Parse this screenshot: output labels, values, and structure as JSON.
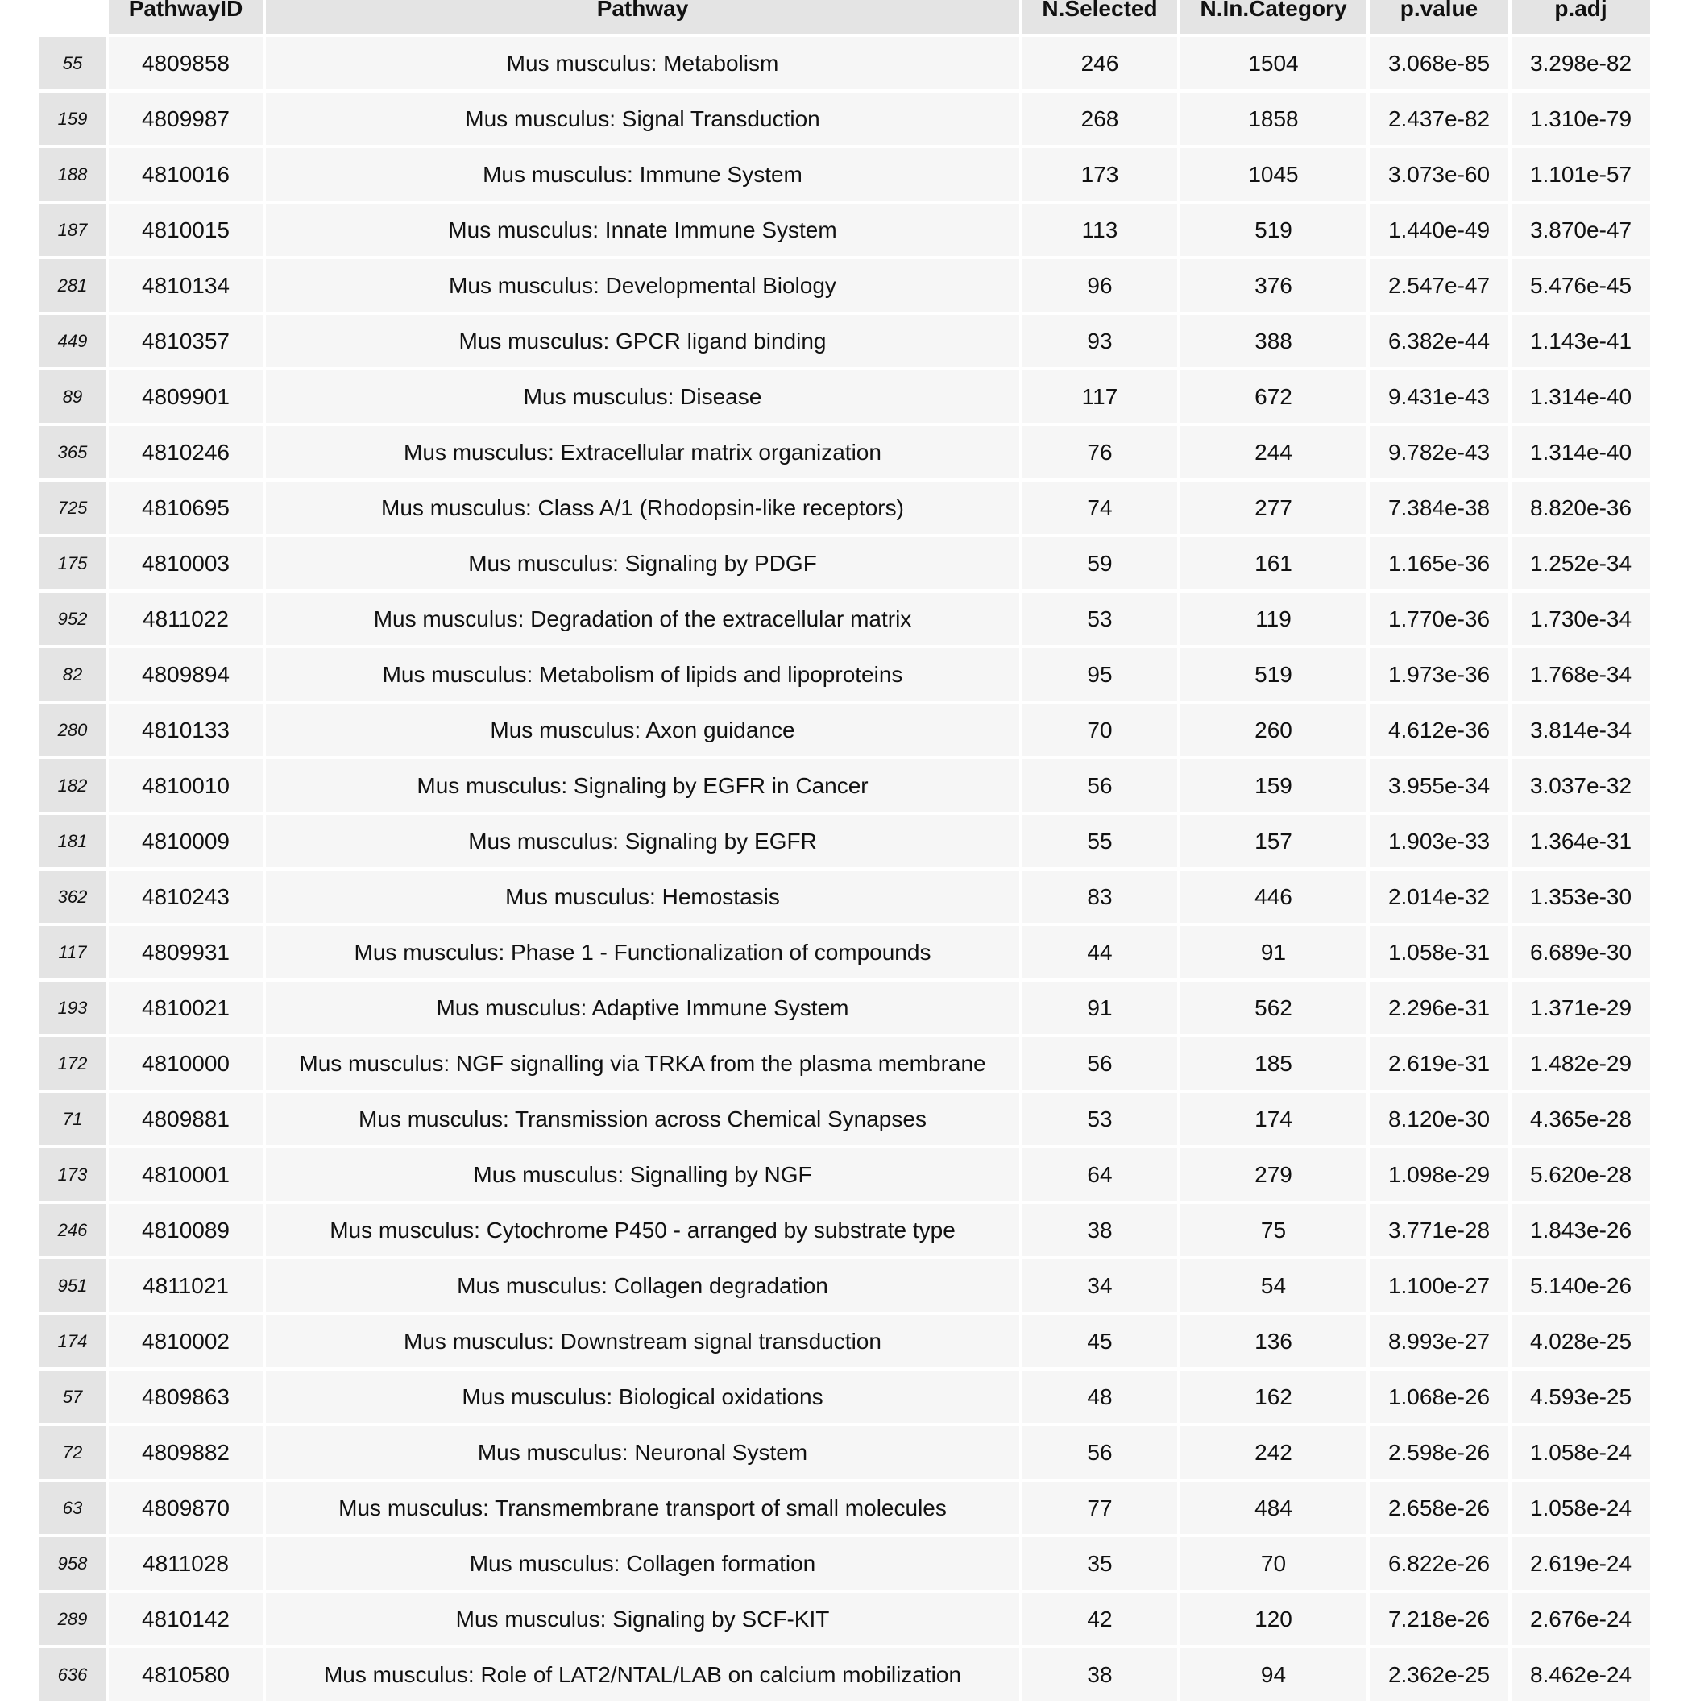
{
  "table": {
    "headers": [
      "",
      "PathwayID",
      "Pathway",
      "N.Selected",
      "N.In.Category",
      "p.value",
      "p.adj"
    ],
    "rows": [
      {
        "idx": "55",
        "id": "4809858",
        "pathway": "Mus musculus: Metabolism",
        "nsel": "246",
        "ncat": "1504",
        "pval": "3.068e-85",
        "padj": "3.298e-82"
      },
      {
        "idx": "159",
        "id": "4809987",
        "pathway": "Mus musculus: Signal Transduction",
        "nsel": "268",
        "ncat": "1858",
        "pval": "2.437e-82",
        "padj": "1.310e-79"
      },
      {
        "idx": "188",
        "id": "4810016",
        "pathway": "Mus musculus: Immune System",
        "nsel": "173",
        "ncat": "1045",
        "pval": "3.073e-60",
        "padj": "1.101e-57"
      },
      {
        "idx": "187",
        "id": "4810015",
        "pathway": "Mus musculus: Innate Immune System",
        "nsel": "113",
        "ncat": "519",
        "pval": "1.440e-49",
        "padj": "3.870e-47"
      },
      {
        "idx": "281",
        "id": "4810134",
        "pathway": "Mus musculus: Developmental Biology",
        "nsel": "96",
        "ncat": "376",
        "pval": "2.547e-47",
        "padj": "5.476e-45"
      },
      {
        "idx": "449",
        "id": "4810357",
        "pathway": "Mus musculus: GPCR ligand binding",
        "nsel": "93",
        "ncat": "388",
        "pval": "6.382e-44",
        "padj": "1.143e-41"
      },
      {
        "idx": "89",
        "id": "4809901",
        "pathway": "Mus musculus: Disease",
        "nsel": "117",
        "ncat": "672",
        "pval": "9.431e-43",
        "padj": "1.314e-40"
      },
      {
        "idx": "365",
        "id": "4810246",
        "pathway": "Mus musculus: Extracellular matrix organization",
        "nsel": "76",
        "ncat": "244",
        "pval": "9.782e-43",
        "padj": "1.314e-40"
      },
      {
        "idx": "725",
        "id": "4810695",
        "pathway": "Mus musculus: Class A/1 (Rhodopsin-like receptors)",
        "nsel": "74",
        "ncat": "277",
        "pval": "7.384e-38",
        "padj": "8.820e-36"
      },
      {
        "idx": "175",
        "id": "4810003",
        "pathway": "Mus musculus: Signaling by PDGF",
        "nsel": "59",
        "ncat": "161",
        "pval": "1.165e-36",
        "padj": "1.252e-34"
      },
      {
        "idx": "952",
        "id": "4811022",
        "pathway": "Mus musculus: Degradation of the extracellular matrix",
        "nsel": "53",
        "ncat": "119",
        "pval": "1.770e-36",
        "padj": "1.730e-34"
      },
      {
        "idx": "82",
        "id": "4809894",
        "pathway": "Mus musculus: Metabolism of lipids and lipoproteins",
        "nsel": "95",
        "ncat": "519",
        "pval": "1.973e-36",
        "padj": "1.768e-34"
      },
      {
        "idx": "280",
        "id": "4810133",
        "pathway": "Mus musculus: Axon guidance",
        "nsel": "70",
        "ncat": "260",
        "pval": "4.612e-36",
        "padj": "3.814e-34"
      },
      {
        "idx": "182",
        "id": "4810010",
        "pathway": "Mus musculus: Signaling by EGFR in Cancer",
        "nsel": "56",
        "ncat": "159",
        "pval": "3.955e-34",
        "padj": "3.037e-32"
      },
      {
        "idx": "181",
        "id": "4810009",
        "pathway": "Mus musculus: Signaling by EGFR",
        "nsel": "55",
        "ncat": "157",
        "pval": "1.903e-33",
        "padj": "1.364e-31"
      },
      {
        "idx": "362",
        "id": "4810243",
        "pathway": "Mus musculus: Hemostasis",
        "nsel": "83",
        "ncat": "446",
        "pval": "2.014e-32",
        "padj": "1.353e-30"
      },
      {
        "idx": "117",
        "id": "4809931",
        "pathway": "Mus musculus: Phase 1 - Functionalization of compounds",
        "nsel": "44",
        "ncat": "91",
        "pval": "1.058e-31",
        "padj": "6.689e-30"
      },
      {
        "idx": "193",
        "id": "4810021",
        "pathway": "Mus musculus: Adaptive Immune System",
        "nsel": "91",
        "ncat": "562",
        "pval": "2.296e-31",
        "padj": "1.371e-29"
      },
      {
        "idx": "172",
        "id": "4810000",
        "pathway": "Mus musculus: NGF signalling via TRKA from the plasma membrane",
        "nsel": "56",
        "ncat": "185",
        "pval": "2.619e-31",
        "padj": "1.482e-29"
      },
      {
        "idx": "71",
        "id": "4809881",
        "pathway": "Mus musculus: Transmission across Chemical Synapses",
        "nsel": "53",
        "ncat": "174",
        "pval": "8.120e-30",
        "padj": "4.365e-28"
      },
      {
        "idx": "173",
        "id": "4810001",
        "pathway": "Mus musculus: Signalling by NGF",
        "nsel": "64",
        "ncat": "279",
        "pval": "1.098e-29",
        "padj": "5.620e-28"
      },
      {
        "idx": "246",
        "id": "4810089",
        "pathway": "Mus musculus: Cytochrome P450 - arranged by substrate type",
        "nsel": "38",
        "ncat": "75",
        "pval": "3.771e-28",
        "padj": "1.843e-26"
      },
      {
        "idx": "951",
        "id": "4811021",
        "pathway": "Mus musculus: Collagen degradation",
        "nsel": "34",
        "ncat": "54",
        "pval": "1.100e-27",
        "padj": "5.140e-26"
      },
      {
        "idx": "174",
        "id": "4810002",
        "pathway": "Mus musculus: Downstream signal transduction",
        "nsel": "45",
        "ncat": "136",
        "pval": "8.993e-27",
        "padj": "4.028e-25"
      },
      {
        "idx": "57",
        "id": "4809863",
        "pathway": "Mus musculus: Biological oxidations",
        "nsel": "48",
        "ncat": "162",
        "pval": "1.068e-26",
        "padj": "4.593e-25"
      },
      {
        "idx": "72",
        "id": "4809882",
        "pathway": "Mus musculus: Neuronal System",
        "nsel": "56",
        "ncat": "242",
        "pval": "2.598e-26",
        "padj": "1.058e-24"
      },
      {
        "idx": "63",
        "id": "4809870",
        "pathway": "Mus musculus: Transmembrane transport of small molecules",
        "nsel": "77",
        "ncat": "484",
        "pval": "2.658e-26",
        "padj": "1.058e-24"
      },
      {
        "idx": "958",
        "id": "4811028",
        "pathway": "Mus musculus: Collagen formation",
        "nsel": "35",
        "ncat": "70",
        "pval": "6.822e-26",
        "padj": "2.619e-24"
      },
      {
        "idx": "289",
        "id": "4810142",
        "pathway": "Mus musculus: Signaling by SCF-KIT",
        "nsel": "42",
        "ncat": "120",
        "pval": "7.218e-26",
        "padj": "2.676e-24"
      },
      {
        "idx": "636",
        "id": "4810580",
        "pathway": "Mus musculus: Role of LAT2/NTAL/LAB on calcium mobilization",
        "nsel": "38",
        "ncat": "94",
        "pval": "2.362e-25",
        "padj": "8.462e-24"
      }
    ]
  }
}
